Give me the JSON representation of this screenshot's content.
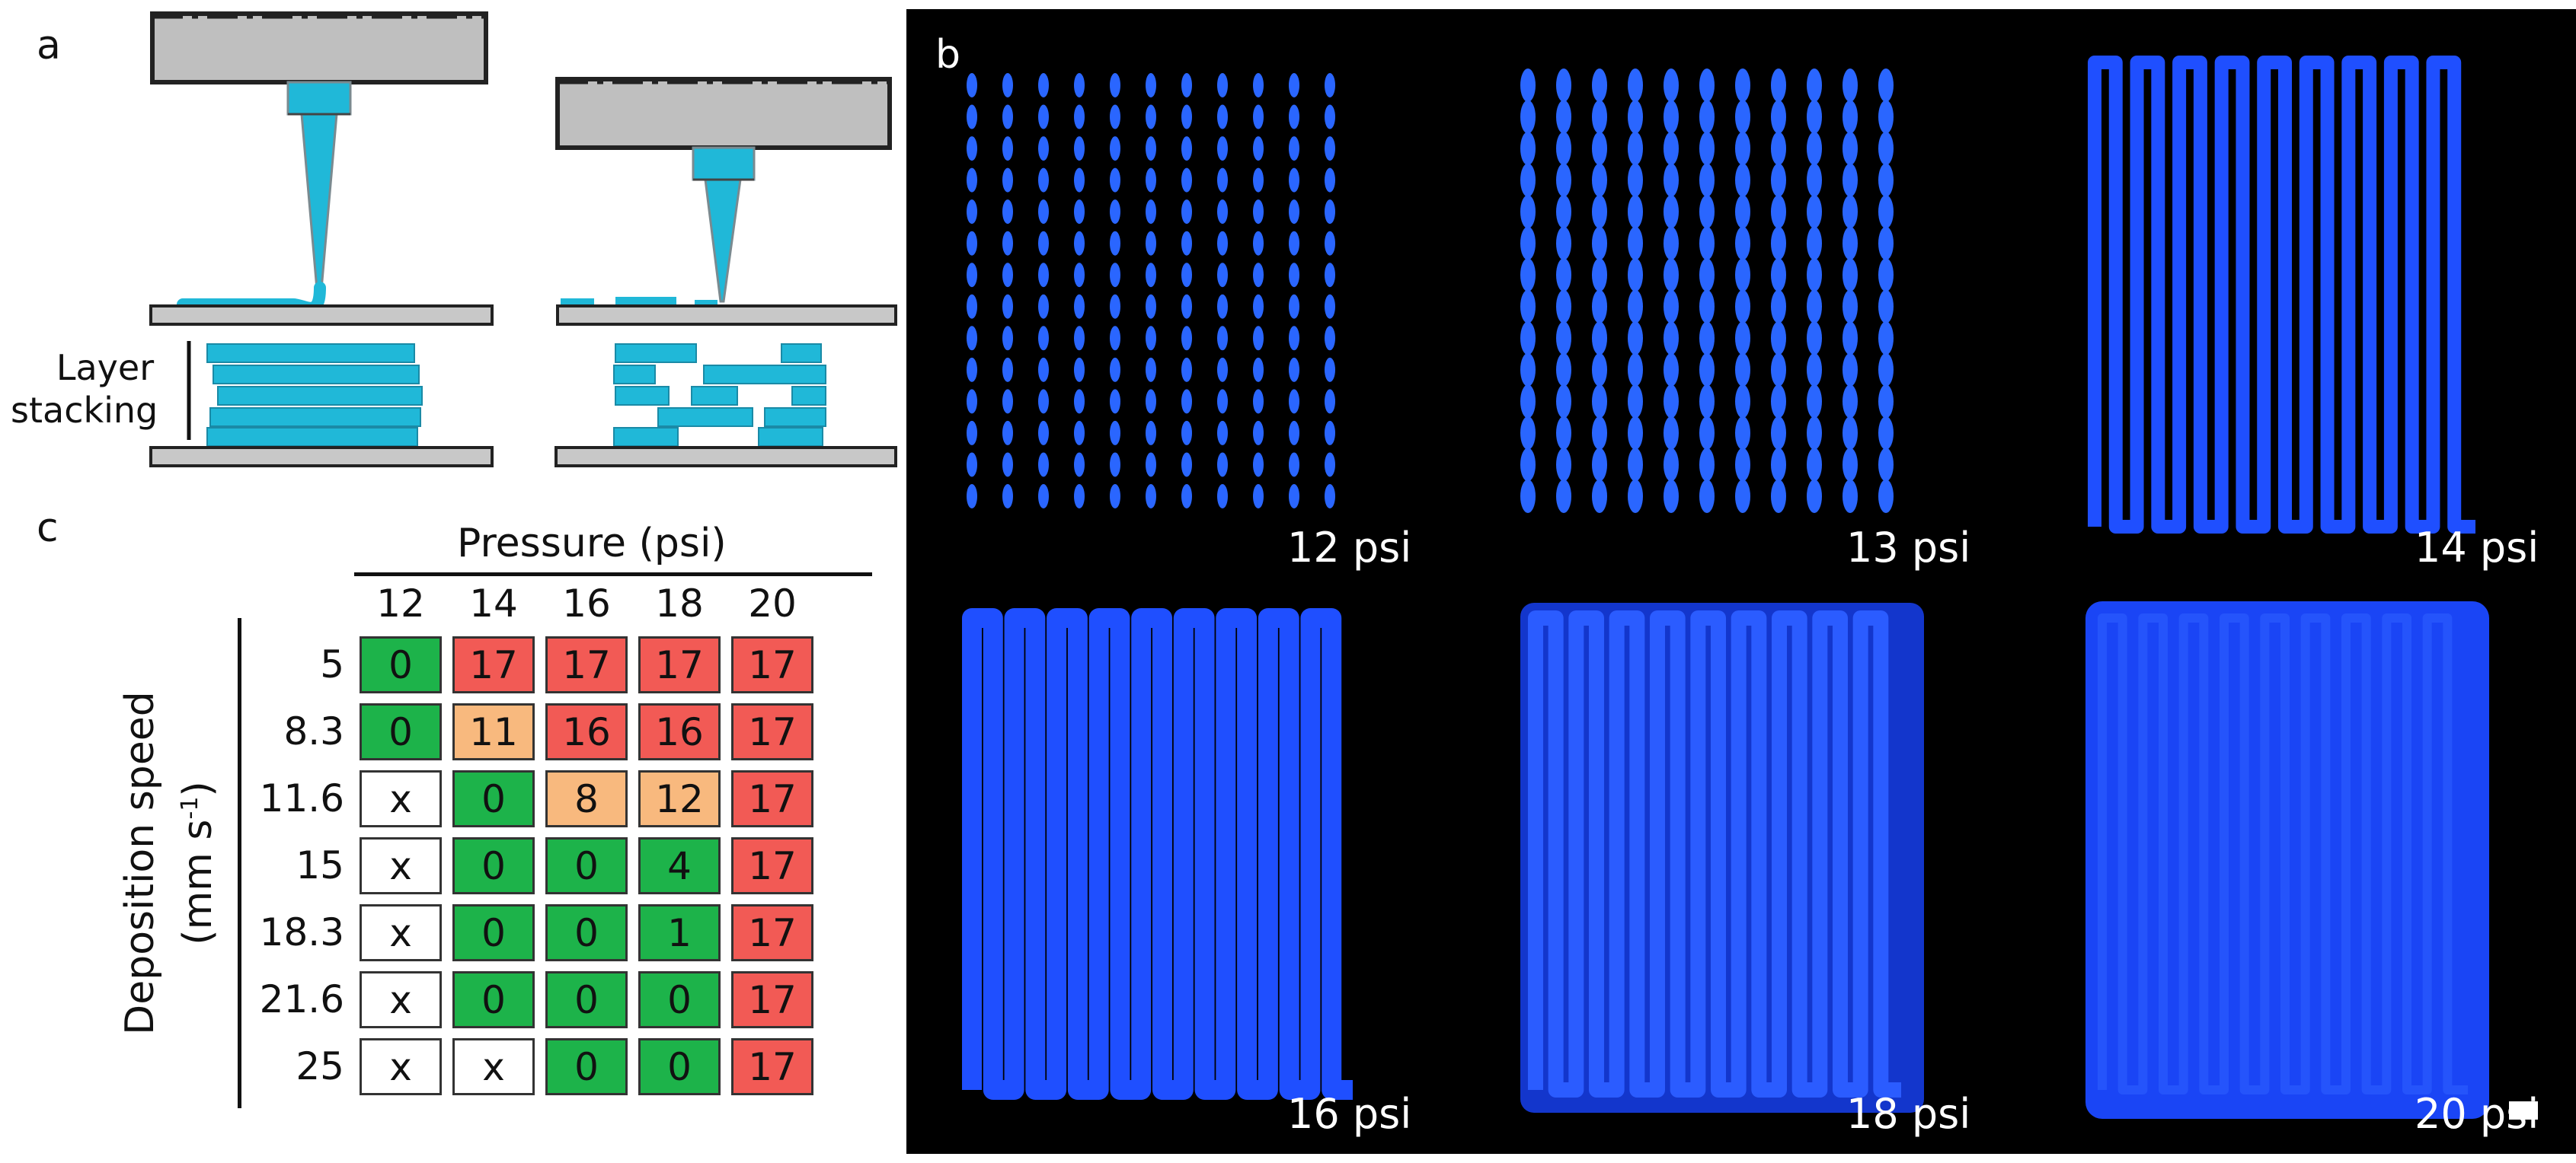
{
  "panel_a": {
    "label": "a",
    "layer_label_line1": "Layer",
    "layer_label_line2": "stacking"
  },
  "panel_b": {
    "label": "b",
    "images": [
      {
        "caption": "12 psi"
      },
      {
        "caption": "13 psi"
      },
      {
        "caption": "14 psi"
      },
      {
        "caption": "16 psi"
      },
      {
        "caption": "18 psi"
      },
      {
        "caption": "20 psi"
      }
    ]
  },
  "panel_c": {
    "label": "c",
    "column_title": "Pressure (psi)",
    "row_title": "Deposition speed",
    "row_unit_prefix": "(mm s",
    "row_unit_sup": "-1",
    "row_unit_suffix": ")",
    "pressures": [
      "12",
      "14",
      "16",
      "18",
      "20"
    ],
    "speeds": [
      "5",
      "8.3",
      "11.6",
      "15",
      "18.3",
      "21.6",
      "25"
    ],
    "cells": [
      [
        "0",
        "17",
        "17",
        "17",
        "17"
      ],
      [
        "0",
        "11",
        "16",
        "16",
        "17"
      ],
      [
        "x",
        "0",
        "8",
        "12",
        "17"
      ],
      [
        "x",
        "0",
        "0",
        "4",
        "17"
      ],
      [
        "x",
        "0",
        "0",
        "1",
        "17"
      ],
      [
        "x",
        "0",
        "0",
        "0",
        "17"
      ],
      [
        "x",
        "x",
        "0",
        "0",
        "17"
      ]
    ],
    "colors": {
      "green": "#1db34a",
      "red": "#f25a55",
      "orange": "#f8b97e",
      "white": "#ffffff"
    }
  }
}
